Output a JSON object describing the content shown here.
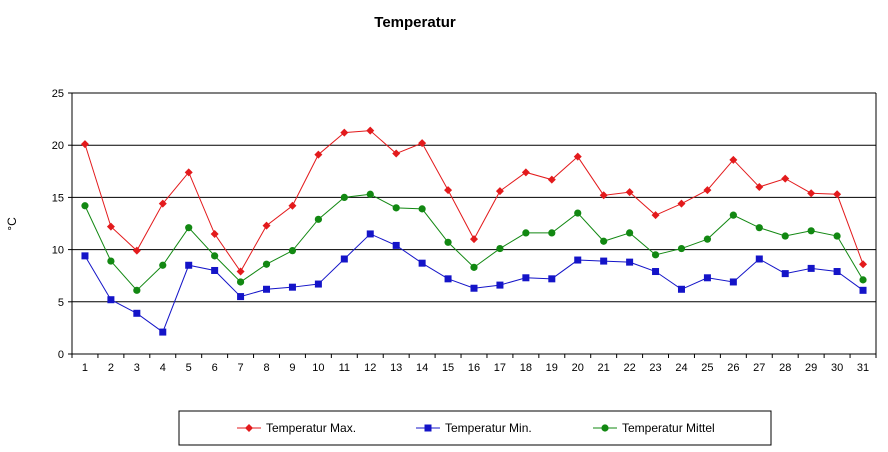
{
  "chart_data": {
    "type": "line",
    "title": "Temperatur",
    "xlabel": "",
    "ylabel": "°C",
    "ylim": [
      0,
      25
    ],
    "yticks": [
      0,
      5,
      10,
      15,
      20,
      25
    ],
    "grid": "horizontal",
    "legend_position": "bottom",
    "x": [
      1,
      2,
      3,
      4,
      5,
      6,
      7,
      8,
      9,
      10,
      11,
      12,
      13,
      14,
      15,
      16,
      17,
      18,
      19,
      20,
      21,
      22,
      23,
      24,
      25,
      26,
      27,
      28,
      29,
      30,
      31
    ],
    "series": [
      {
        "name": "Temperatur Max.",
        "color": "#e31a1c",
        "marker": "diamond",
        "values": [
          20.1,
          12.2,
          9.9,
          14.4,
          17.4,
          11.5,
          7.9,
          12.3,
          14.2,
          19.1,
          21.2,
          21.4,
          19.2,
          20.2,
          15.7,
          11.0,
          15.6,
          17.4,
          16.7,
          18.9,
          15.2,
          15.5,
          13.3,
          14.4,
          15.7,
          18.6,
          16.0,
          16.8,
          15.4,
          15.3,
          8.6
        ]
      },
      {
        "name": "Temperatur Min.",
        "color": "#1414c8",
        "marker": "square",
        "values": [
          9.4,
          5.2,
          3.9,
          2.1,
          8.5,
          8.0,
          5.5,
          6.2,
          6.4,
          6.7,
          9.1,
          11.5,
          10.4,
          8.7,
          7.2,
          6.3,
          6.6,
          7.3,
          7.2,
          9.0,
          8.9,
          8.8,
          7.9,
          6.2,
          7.3,
          6.9,
          9.1,
          7.7,
          8.2,
          7.9,
          6.1
        ]
      },
      {
        "name": "Temperatur Mittel",
        "color": "#128812",
        "marker": "circle",
        "values": [
          14.2,
          8.9,
          6.1,
          8.5,
          12.1,
          9.4,
          6.9,
          8.6,
          9.9,
          12.9,
          15.0,
          15.3,
          14.0,
          13.9,
          10.7,
          8.3,
          10.1,
          11.6,
          11.6,
          13.5,
          10.8,
          11.6,
          9.5,
          10.1,
          11.0,
          13.3,
          12.1,
          11.3,
          11.8,
          11.3,
          7.1
        ]
      }
    ]
  }
}
